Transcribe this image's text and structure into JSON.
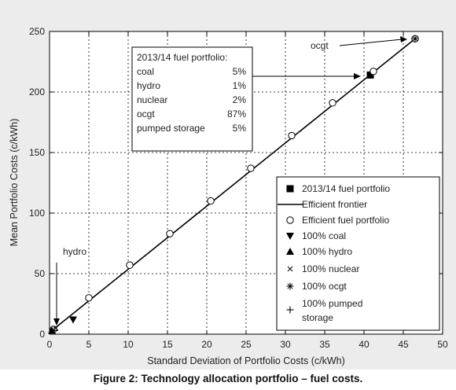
{
  "caption": "Figure 2: Technology allocation portfolio – fuel costs.",
  "chart_data": {
    "type": "scatter",
    "title": "",
    "xlabel": "Standard Deviation of Portfolio Costs (c/kWh)",
    "ylabel": "Mean Portfolio Costs (c/kWh)",
    "xlim": [
      0,
      50
    ],
    "ylim": [
      0,
      250
    ],
    "xticks": [
      0,
      5,
      10,
      15,
      20,
      25,
      30,
      35,
      40,
      45,
      50
    ],
    "yticks": [
      0,
      50,
      100,
      150,
      200,
      250
    ],
    "grid": true,
    "legend_position": "lower-right",
    "frontier": {
      "name": "Efficient frontier",
      "x": [
        0.3,
        46.5
      ],
      "y": [
        3,
        244
      ]
    },
    "series": [
      {
        "name": "2013/14 fuel portfolio",
        "marker": "square",
        "points": [
          [
            40.8,
            214
          ]
        ]
      },
      {
        "name": "Efficient fuel portfolio",
        "marker": "circle",
        "points": [
          [
            0.5,
            4
          ],
          [
            5.0,
            30
          ],
          [
            10.2,
            57
          ],
          [
            15.3,
            83
          ],
          [
            20.5,
            110
          ],
          [
            25.6,
            137
          ],
          [
            30.8,
            164
          ],
          [
            36.0,
            191
          ],
          [
            41.2,
            217
          ],
          [
            46.5,
            244
          ]
        ]
      },
      {
        "name": "100% coal",
        "marker": "triangle-down",
        "points": [
          [
            3.0,
            12
          ]
        ]
      },
      {
        "name": "100% hydro",
        "marker": "triangle-up",
        "points": [
          [
            0.3,
            3
          ]
        ]
      },
      {
        "name": "100% nuclear",
        "marker": "x",
        "points": [
          [
            0.8,
            5
          ]
        ]
      },
      {
        "name": "100% ocgt",
        "marker": "star",
        "points": [
          [
            46.5,
            244
          ]
        ]
      },
      {
        "name": "100% pumped storage",
        "marker": "plus",
        "points": [
          [
            0.6,
            3
          ]
        ]
      }
    ],
    "annotations": {
      "ocgt_label": "ocgt",
      "hydro_label": "hydro",
      "portfolio_box": {
        "title": "2013/14 fuel portfolio:",
        "rows": [
          {
            "label": "coal",
            "value": "5%"
          },
          {
            "label": "hydro",
            "value": "1%"
          },
          {
            "label": "nuclear",
            "value": "2%"
          },
          {
            "label": "ocgt",
            "value": "87%"
          },
          {
            "label": "pumped storage",
            "value": "5%"
          }
        ]
      }
    },
    "legend": [
      {
        "marker": "square",
        "label": "2013/14 fuel portfolio"
      },
      {
        "marker": "line",
        "label": "Efficient frontier"
      },
      {
        "marker": "circle",
        "label": "Efficient fuel portfolio"
      },
      {
        "marker": "triangle-down",
        "label": "100% coal"
      },
      {
        "marker": "triangle-up",
        "label": "100% hydro"
      },
      {
        "marker": "x",
        "label": "100% nuclear"
      },
      {
        "marker": "star",
        "label": "100% ocgt"
      },
      {
        "marker": "plus",
        "label": "100% pumped",
        "label2": "storage"
      }
    ]
  }
}
